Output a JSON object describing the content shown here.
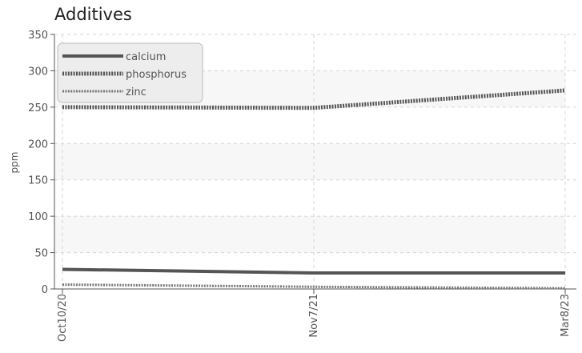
{
  "chart_data": {
    "type": "line",
    "title": "Additives",
    "xlabel": "",
    "ylabel": "ppm",
    "x": [
      "Oct10/20",
      "Nov7/21",
      "Mar8/23"
    ],
    "ylim": [
      0,
      350
    ],
    "yticks": [
      0,
      50,
      100,
      150,
      200,
      250,
      300,
      350
    ],
    "grid": true,
    "legend": "top-left",
    "series": [
      {
        "name": "calcium",
        "values": [
          27,
          22,
          22
        ],
        "color": "#555555",
        "style": "solid"
      },
      {
        "name": "phosphorus",
        "values": [
          250,
          249,
          273
        ],
        "color": "#555555",
        "style": "dotted-thick"
      },
      {
        "name": "zinc",
        "values": [
          6,
          3,
          1
        ],
        "color": "#777777",
        "style": "dotted-thin"
      }
    ]
  }
}
